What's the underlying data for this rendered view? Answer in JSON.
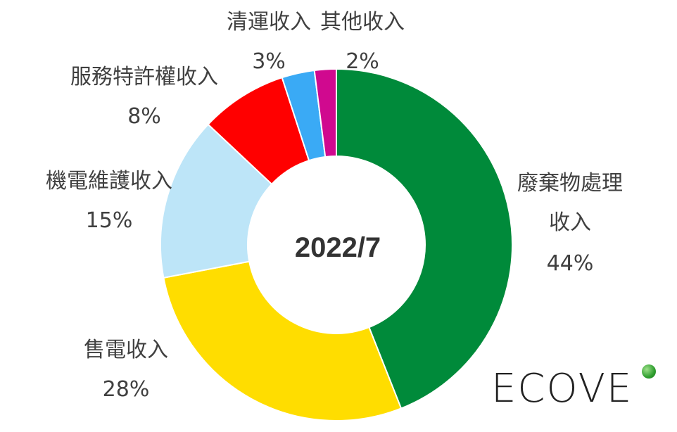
{
  "chart_data": {
    "type": "pie",
    "center_label": "2022/7",
    "slices": [
      {
        "label": "廢棄物處理收入",
        "percent_label": "44%",
        "value": 44,
        "color": "#008a3a"
      },
      {
        "label": "售電收入",
        "percent_label": "28%",
        "value": 28,
        "color": "#ffdd00"
      },
      {
        "label": "機電維護收入",
        "percent_label": "15%",
        "value": 15,
        "color": "#bde5f8"
      },
      {
        "label": "服務特許權收入",
        "percent_label": "8%",
        "value": 8,
        "color": "#ff0000"
      },
      {
        "label": "清運收入",
        "percent_label": "3%",
        "value": 3,
        "color": "#3aaaf5"
      },
      {
        "label": "其他收入",
        "percent_label": "2%",
        "value": 2,
        "color": "#d0098f"
      }
    ]
  },
  "logo": {
    "text": "ECOVE",
    "dot_color": "#2f9e2f"
  }
}
